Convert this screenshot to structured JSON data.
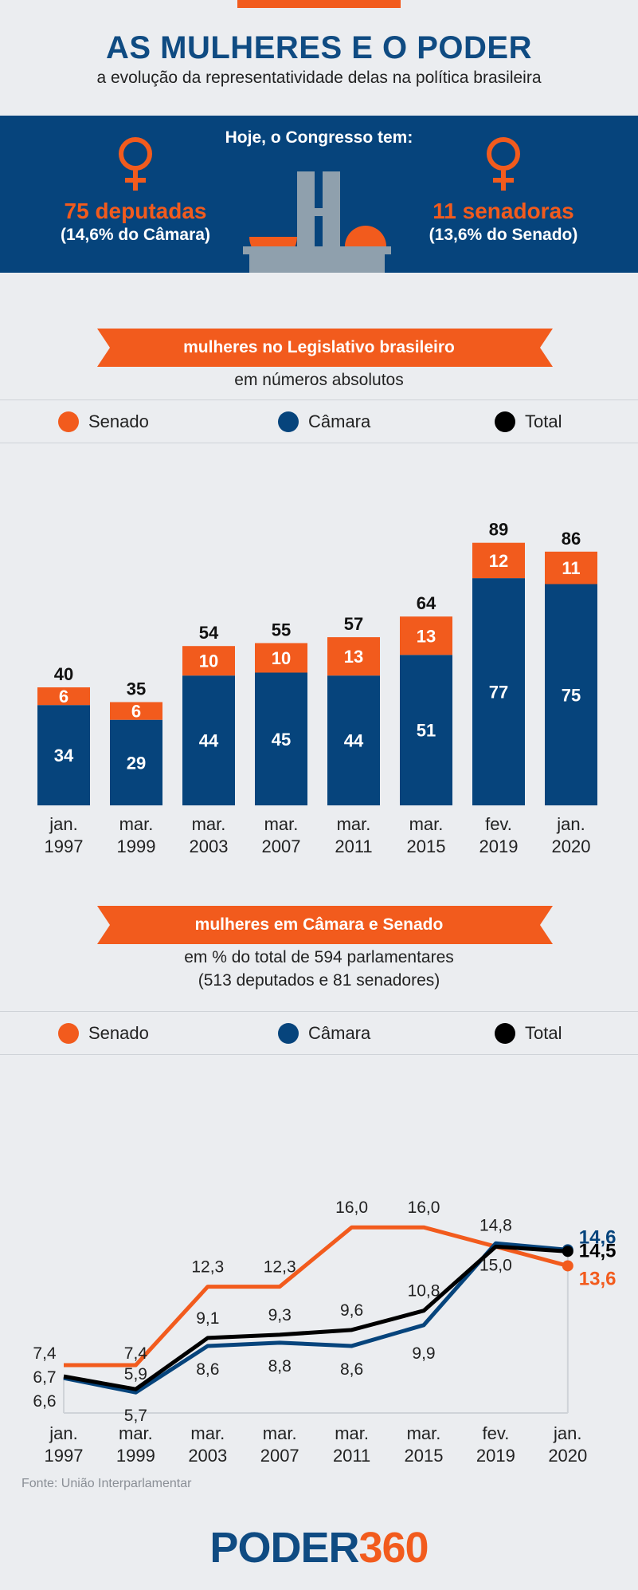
{
  "header": {
    "title": "AS MULHERES E O PODER",
    "subtitle": "a evolução da representatividade delas na política brasileira"
  },
  "banner": {
    "heading": "Hoje, o Congresso tem:",
    "left_big": "75 deputadas",
    "left_small": "(14,6% do Câmara)",
    "right_big": "11 senadoras",
    "right_small": "(13,6% do Senado)"
  },
  "legend": {
    "senado": "Senado",
    "camara": "Câmara",
    "total": "Total"
  },
  "colors": {
    "senado": "#f25b1d",
    "camara": "#06447c",
    "total": "#000000",
    "accent": "#f25b1d",
    "navy": "#06447c"
  },
  "section1": {
    "ribbon": "mulheres no Legislativo brasileiro",
    "caption": "em números absolutos"
  },
  "section2": {
    "ribbon": "mulheres em Câmara e Senado",
    "caption_line1": "em % do total de 594 parlamentares",
    "caption_line2": "(513 deputados e 81 senadores)"
  },
  "chart_data": [
    {
      "type": "bar",
      "categories": [
        [
          "jan.",
          "1997"
        ],
        [
          "mar.",
          "1999"
        ],
        [
          "mar.",
          "2003"
        ],
        [
          "mar.",
          "2007"
        ],
        [
          "mar.",
          "2011"
        ],
        [
          "mar.",
          "2015"
        ],
        [
          "fev.",
          "2019"
        ],
        [
          "jan.",
          "2020"
        ]
      ],
      "series": [
        {
          "name": "Câmara",
          "values": [
            34,
            29,
            44,
            45,
            44,
            51,
            77,
            75
          ]
        },
        {
          "name": "Senado",
          "values": [
            6,
            6,
            10,
            10,
            13,
            13,
            12,
            11
          ]
        }
      ],
      "totals": [
        40,
        35,
        54,
        55,
        57,
        64,
        89,
        86
      ],
      "ylim": [
        0,
        89
      ]
    },
    {
      "type": "line",
      "categories": [
        [
          "jan.",
          "1997"
        ],
        [
          "mar.",
          "1999"
        ],
        [
          "mar.",
          "2003"
        ],
        [
          "mar.",
          "2007"
        ],
        [
          "mar.",
          "2011"
        ],
        [
          "mar.",
          "2015"
        ],
        [
          "fev.",
          "2019"
        ],
        [
          "jan.",
          "2020"
        ]
      ],
      "series": [
        {
          "name": "Senado",
          "values": [
            7.4,
            7.4,
            12.3,
            12.3,
            16.0,
            16.0,
            14.8,
            13.6
          ],
          "labels": [
            "7,4",
            "7,4",
            "12,3",
            "12,3",
            "16,0",
            "16,0",
            "14,8",
            "13,6"
          ]
        },
        {
          "name": "Câmara",
          "values": [
            6.6,
            5.7,
            8.6,
            8.8,
            8.6,
            9.9,
            15.0,
            14.6
          ],
          "labels": [
            "6,6",
            "5,7",
            "8,6",
            "8,8",
            "8,6",
            "9,9",
            "15,0",
            "14,6"
          ]
        },
        {
          "name": "Total",
          "values": [
            6.7,
            5.9,
            9.1,
            9.3,
            9.6,
            10.8,
            14.8,
            14.5
          ],
          "labels": [
            "6,7",
            "5,9",
            "9,1",
            "9,3",
            "9,6",
            "10,8",
            "",
            "14,5"
          ]
        }
      ],
      "ylim": [
        0,
        17
      ]
    }
  ],
  "footer": {
    "source": "Fonte: União Interparlamentar",
    "logo_part1": "PODER",
    "logo_part2": "360"
  }
}
